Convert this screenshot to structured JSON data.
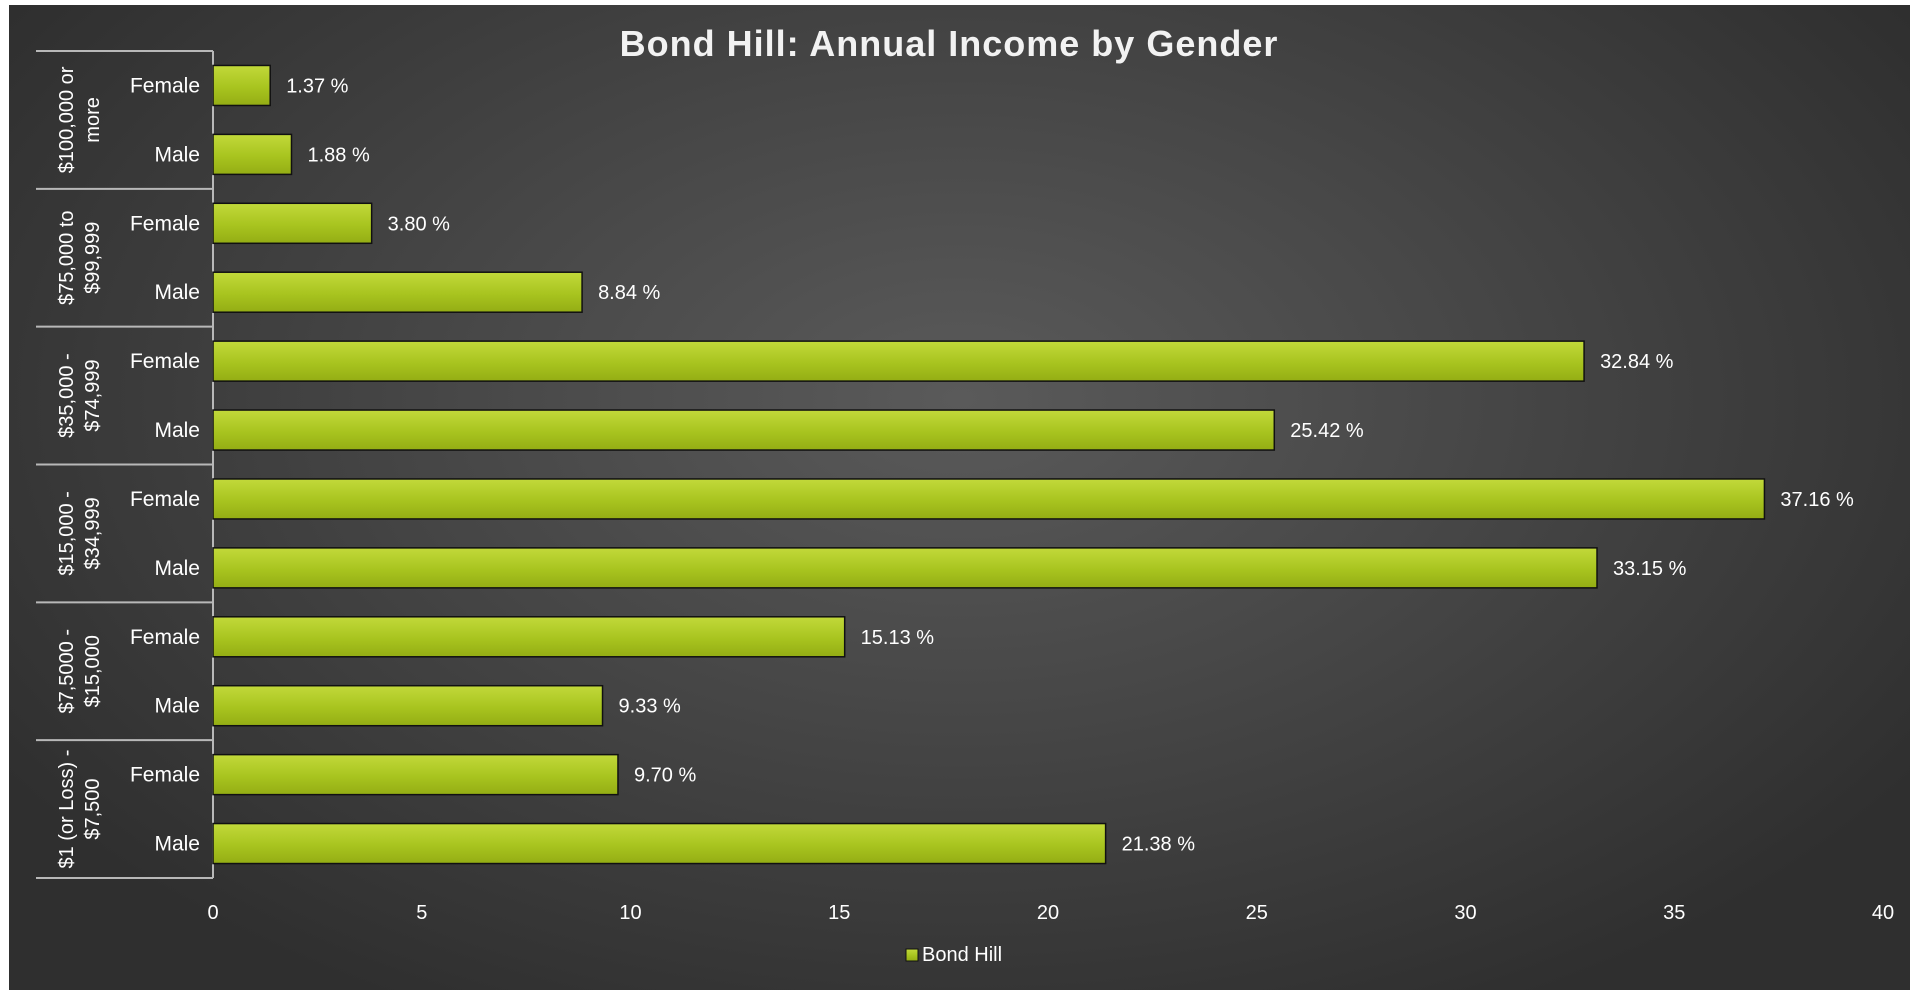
{
  "chart_data": {
    "type": "bar",
    "orientation": "horizontal",
    "title": "Bond Hill: Annual Income by Gender",
    "groups": [
      {
        "label": "$100,000 or more",
        "lines": [
          "$100,000 or",
          "more"
        ],
        "bars": [
          {
            "sub": "Female",
            "value": 1.37,
            "label": "1.37 %"
          },
          {
            "sub": "Male",
            "value": 1.88,
            "label": "1.88 %"
          }
        ]
      },
      {
        "label": "$75,000 to $99,999",
        "lines": [
          "$75,000 to",
          "$99,999"
        ],
        "bars": [
          {
            "sub": "Female",
            "value": 3.8,
            "label": "3.80 %"
          },
          {
            "sub": "Male",
            "value": 8.84,
            "label": "8.84 %"
          }
        ]
      },
      {
        "label": "$35,000 - $74,999",
        "lines": [
          "$35,000 -",
          "$74,999"
        ],
        "bars": [
          {
            "sub": "Female",
            "value": 32.84,
            "label": "32.84 %"
          },
          {
            "sub": "Male",
            "value": 25.42,
            "label": "25.42 %"
          }
        ]
      },
      {
        "label": "$15,000 - $34,999",
        "lines": [
          "$15,000 -",
          "$34,999"
        ],
        "bars": [
          {
            "sub": "Female",
            "value": 37.16,
            "label": "37.16 %"
          },
          {
            "sub": "Male",
            "value": 33.15,
            "label": "33.15 %"
          }
        ]
      },
      {
        "label": "$7,5000 - $15,000",
        "lines": [
          "$7,5000 -",
          "$15,000"
        ],
        "bars": [
          {
            "sub": "Female",
            "value": 15.13,
            "label": "15.13 %"
          },
          {
            "sub": "Male",
            "value": 9.33,
            "label": "9.33 %"
          }
        ]
      },
      {
        "label": "$1 (or Loss) - $7,500",
        "lines": [
          "$1 (or Loss) -",
          "$7,500"
        ],
        "bars": [
          {
            "sub": "Female",
            "value": 9.7,
            "label": "9.70 %"
          },
          {
            "sub": "Male",
            "value": 21.38,
            "label": "21.38 %"
          }
        ]
      }
    ],
    "xlim": [
      0,
      40
    ],
    "xticks": [
      "0",
      "5",
      "10",
      "15",
      "20",
      "25",
      "30",
      "35",
      "40"
    ],
    "grid": false,
    "legend": {
      "position": "bottom",
      "entries": [
        {
          "name": "Bond Hill",
          "color": "#a4c21c"
        }
      ]
    },
    "series": [
      {
        "name": "Bond Hill",
        "color": "#a4c21c"
      }
    ],
    "colors": {
      "background": "#474747",
      "bar": "#a4c21c",
      "bar_outline": "#111111",
      "text": "#ffffff"
    }
  }
}
